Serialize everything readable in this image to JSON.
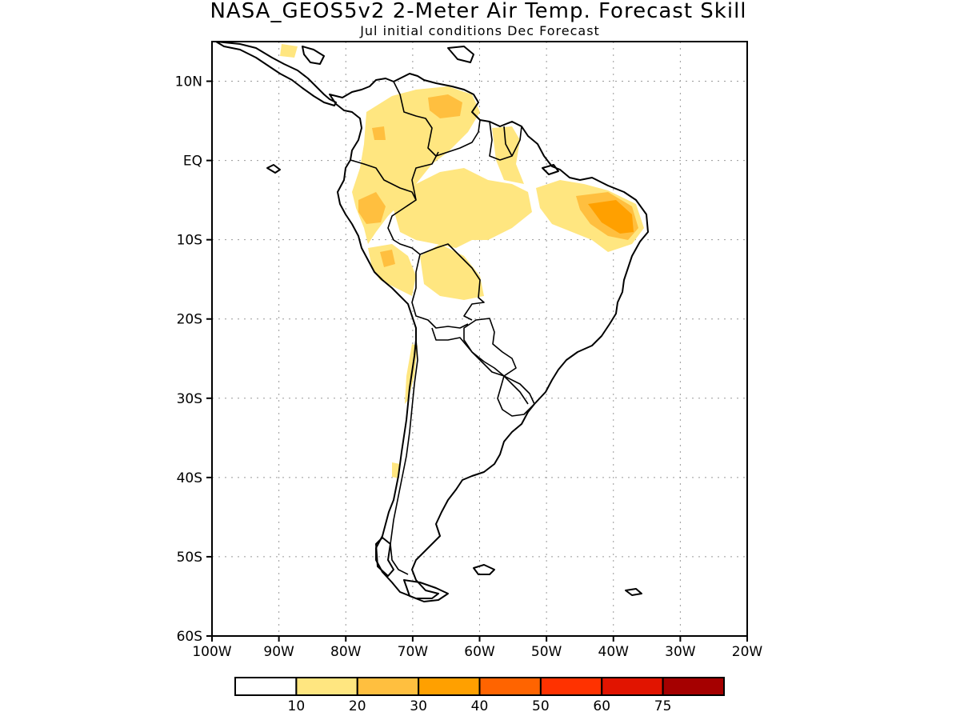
{
  "title": "NASA_GEOS5v2 2-Meter Air Temp. Forecast Skill",
  "subtitle": "Jul initial conditions  Dec Forecast",
  "map": {
    "lon_range": [
      -100,
      -20
    ],
    "lat_range": [
      -60,
      15
    ],
    "x_ticks": [
      "100W",
      "90W",
      "80W",
      "70W",
      "60W",
      "50W",
      "40W",
      "30W",
      "20W"
    ],
    "y_ticks": [
      "10N",
      "EQ",
      "10S",
      "20S",
      "30S",
      "40S",
      "50S",
      "60S"
    ],
    "grid": true
  },
  "legend": {
    "labels": [
      "10",
      "20",
      "30",
      "40",
      "50",
      "60",
      "75"
    ],
    "colors": [
      "#ffffff",
      "#ffe680",
      "#ffbf3f",
      "#ffa000",
      "#ff6400",
      "#ff3200",
      "#e11400",
      "#a50000"
    ]
  }
}
